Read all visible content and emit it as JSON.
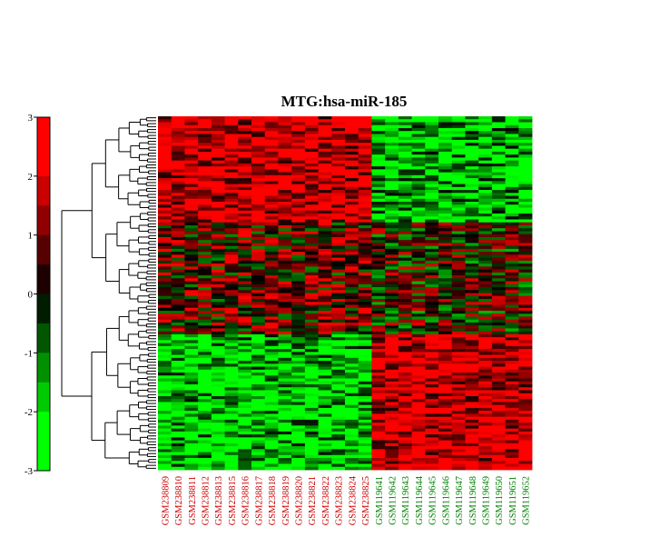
{
  "chart_data": {
    "type": "heatmap",
    "title": "MTG:hsa-miR-185",
    "colorbar": {
      "ticks": [
        3,
        2,
        1,
        0,
        -1,
        -2,
        -3
      ],
      "range": [
        -3,
        3
      ],
      "colors": {
        "low": "#00ff00",
        "mid": "#000000",
        "high": "#ff0000"
      }
    },
    "columns": [
      {
        "label": "GSM238809",
        "group": "red"
      },
      {
        "label": "GSM238810",
        "group": "red"
      },
      {
        "label": "GSM238811",
        "group": "red"
      },
      {
        "label": "GSM238812",
        "group": "red"
      },
      {
        "label": "GSM238813",
        "group": "red"
      },
      {
        "label": "GSM238815",
        "group": "red"
      },
      {
        "label": "GSM238816",
        "group": "red"
      },
      {
        "label": "GSM238817",
        "group": "red"
      },
      {
        "label": "GSM238818",
        "group": "red"
      },
      {
        "label": "GSM238819",
        "group": "red"
      },
      {
        "label": "GSM238820",
        "group": "red"
      },
      {
        "label": "GSM238821",
        "group": "red"
      },
      {
        "label": "GSM238822",
        "group": "red"
      },
      {
        "label": "GSM238823",
        "group": "red"
      },
      {
        "label": "GSM238824",
        "group": "red"
      },
      {
        "label": "GSM238825",
        "group": "red"
      },
      {
        "label": "GSM119641",
        "group": "green"
      },
      {
        "label": "GSM119642",
        "group": "green"
      },
      {
        "label": "GSM119643",
        "group": "green"
      },
      {
        "label": "GSM119644",
        "group": "green"
      },
      {
        "label": "GSM119645",
        "group": "green"
      },
      {
        "label": "GSM119646",
        "group": "green"
      },
      {
        "label": "GSM119647",
        "group": "green"
      },
      {
        "label": "GSM119648",
        "group": "green"
      },
      {
        "label": "GSM119649",
        "group": "green"
      },
      {
        "label": "GSM119650",
        "group": "green"
      },
      {
        "label": "GSM119651",
        "group": "green"
      },
      {
        "label": "GSM119652",
        "group": "green"
      }
    ],
    "group_colors": {
      "red": "#cc0000",
      "green": "#008000"
    },
    "row_count": 120,
    "row_clusters": [
      {
        "fraction": 0.3,
        "red_group_mean": 2.0,
        "green_group_mean": -1.8
      },
      {
        "fraction": 0.32,
        "red_group_mean": 0.6,
        "green_group_mean": 0.2
      },
      {
        "fraction": 0.38,
        "red_group_mean": -1.9,
        "green_group_mean": 2.0
      }
    ]
  }
}
